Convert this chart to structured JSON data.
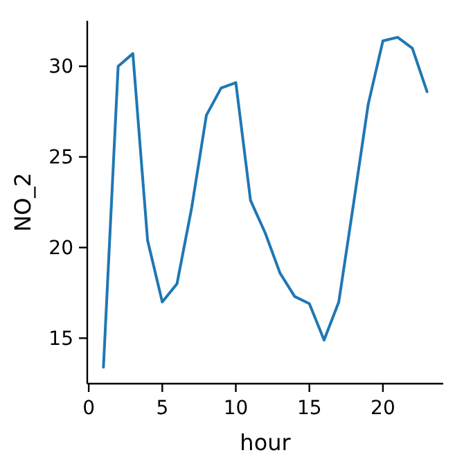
{
  "chart_data": {
    "type": "line",
    "xlabel": "hour",
    "ylabel": "NO_2",
    "x": [
      1,
      2,
      3,
      4,
      5,
      6,
      7,
      8,
      9,
      10,
      11,
      12,
      13,
      14,
      15,
      16,
      17,
      18,
      19,
      20,
      21,
      22,
      23
    ],
    "series": [
      {
        "color": "#1f77b4",
        "values": [
          13.4,
          30.0,
          30.7,
          20.4,
          17.0,
          18.0,
          22.2,
          27.3,
          28.8,
          29.1,
          22.6,
          20.8,
          18.6,
          17.3,
          16.9,
          14.9,
          17.0,
          22.4,
          27.9,
          31.4,
          31.6,
          31.0,
          28.6
        ]
      }
    ],
    "xlim": [
      -0.1,
      24.1
    ],
    "xticks": [
      0,
      5,
      10,
      15,
      20
    ],
    "ylim": [
      12.49,
      32.51
    ],
    "yticks": [
      15,
      20,
      25,
      30
    ],
    "grid": false,
    "marker": "none",
    "line_style": "solid"
  }
}
